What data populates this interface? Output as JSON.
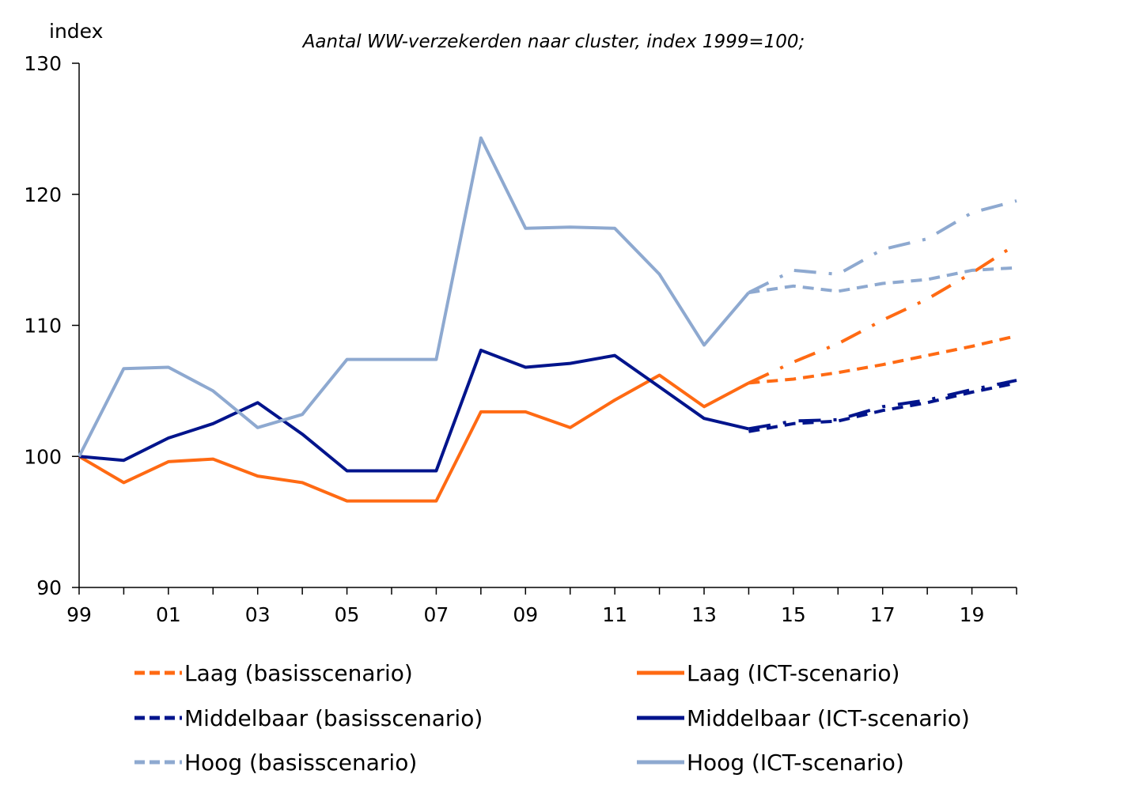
{
  "chart_data": {
    "type": "line",
    "title": "Aantal WW-verzekerden naar cluster, index 1999=100;",
    "ylabel": "index",
    "xlabel": "",
    "ylim": [
      90,
      130
    ],
    "yticks": [
      90,
      100,
      110,
      120,
      130
    ],
    "xlim": [
      1999,
      2020
    ],
    "xtick_labels": [
      "99",
      "01",
      "03",
      "05",
      "07",
      "09",
      "11",
      "13",
      "15",
      "17",
      "19"
    ],
    "xtick_years": [
      1999,
      2001,
      2003,
      2005,
      2007,
      2009,
      2011,
      2013,
      2015,
      2017,
      2019
    ],
    "grid": false,
    "legend": "bottom",
    "colors": {
      "laag": "#FF6A13",
      "middelbaar": "#00148C",
      "hoog": "#8EA9D0"
    },
    "series": [
      {
        "name": "Laag (basisscenario)",
        "group": "laag",
        "style": "dashed",
        "x": [
          2014,
          2015,
          2016,
          2017,
          2018,
          2019,
          2020
        ],
        "y": [
          105.6,
          105.9,
          106.4,
          107.0,
          107.7,
          108.4,
          109.2
        ]
      },
      {
        "name": "Laag (ICT-scenario)",
        "group": "laag",
        "style": "solid",
        "x": [
          1999,
          2000,
          2001,
          2002,
          2003,
          2004,
          2005,
          2006,
          2007,
          2008,
          2009,
          2010,
          2011,
          2012,
          2013,
          2014
        ],
        "y": [
          100,
          98.0,
          99.6,
          99.8,
          98.5,
          98.0,
          96.6,
          96.6,
          96.6,
          103.4,
          103.4,
          102.2,
          104.3,
          106.2,
          103.8,
          105.6
        ]
      },
      {
        "name": "Laag (ICT-scenario) projectie",
        "group": "laag",
        "style": "dashdot",
        "x": [
          2014,
          2015,
          2016,
          2017,
          2018,
          2019,
          2020
        ],
        "y": [
          105.6,
          107.2,
          108.6,
          110.4,
          112.0,
          114.0,
          116.2
        ]
      },
      {
        "name": "Middelbaar (basisscenario)",
        "group": "middelbaar",
        "style": "dashed",
        "x": [
          2014,
          2015,
          2016,
          2017,
          2018,
          2019,
          2020
        ],
        "y": [
          101.9,
          102.5,
          102.7,
          103.5,
          104.1,
          104.9,
          105.6
        ]
      },
      {
        "name": "Middelbaar (ICT-scenario)",
        "group": "middelbaar",
        "style": "solid",
        "x": [
          1999,
          2000,
          2001,
          2002,
          2003,
          2004,
          2005,
          2006,
          2007,
          2008,
          2009,
          2010,
          2011,
          2012,
          2013,
          2014
        ],
        "y": [
          100,
          99.7,
          101.4,
          102.5,
          104.1,
          101.7,
          98.9,
          98.9,
          98.9,
          108.1,
          106.8,
          107.1,
          107.7,
          105.3,
          102.9,
          102.1
        ]
      },
      {
        "name": "Middelbaar (ICT-scenario) projectie",
        "group": "middelbaar",
        "style": "dashdot",
        "x": [
          2014,
          2015,
          2016,
          2017,
          2018,
          2019,
          2020
        ],
        "y": [
          102.1,
          102.7,
          102.8,
          103.8,
          104.3,
          105.1,
          105.8
        ]
      },
      {
        "name": "Hoog (basisscenario)",
        "group": "hoog",
        "style": "dashed",
        "x": [
          2014,
          2015,
          2016,
          2017,
          2018,
          2019,
          2020
        ],
        "y": [
          112.5,
          113.0,
          112.6,
          113.2,
          113.5,
          114.2,
          114.4
        ]
      },
      {
        "name": "Hoog (ICT-scenario)",
        "group": "hoog",
        "style": "solid",
        "x": [
          1999,
          2000,
          2001,
          2002,
          2003,
          2004,
          2005,
          2006,
          2007,
          2008,
          2009,
          2010,
          2011,
          2012,
          2013,
          2014
        ],
        "y": [
          100,
          106.7,
          106.8,
          105.0,
          102.2,
          103.2,
          107.4,
          107.4,
          107.4,
          124.3,
          117.4,
          117.5,
          117.4,
          113.9,
          108.5,
          112.5
        ]
      },
      {
        "name": "Hoog (ICT-scenario) projectie",
        "group": "hoog",
        "style": "dashdot",
        "x": [
          2014,
          2015,
          2016,
          2017,
          2018,
          2019,
          2020
        ],
        "y": [
          112.5,
          114.2,
          113.9,
          115.8,
          116.6,
          118.6,
          119.5
        ]
      }
    ],
    "legend_entries": [
      {
        "label": "Laag (basisscenario)",
        "group": "laag",
        "style": "dashed"
      },
      {
        "label": "Laag (ICT-scenario)",
        "group": "laag",
        "style": "solid"
      },
      {
        "label": "Middelbaar (basisscenario)",
        "group": "middelbaar",
        "style": "dashed"
      },
      {
        "label": "Middelbaar (ICT-scenario)",
        "group": "middelbaar",
        "style": "solid"
      },
      {
        "label": "Hoog (basisscenario)",
        "group": "hoog",
        "style": "dashed"
      },
      {
        "label": "Hoog (ICT-scenario)",
        "group": "hoog",
        "style": "solid"
      }
    ]
  }
}
